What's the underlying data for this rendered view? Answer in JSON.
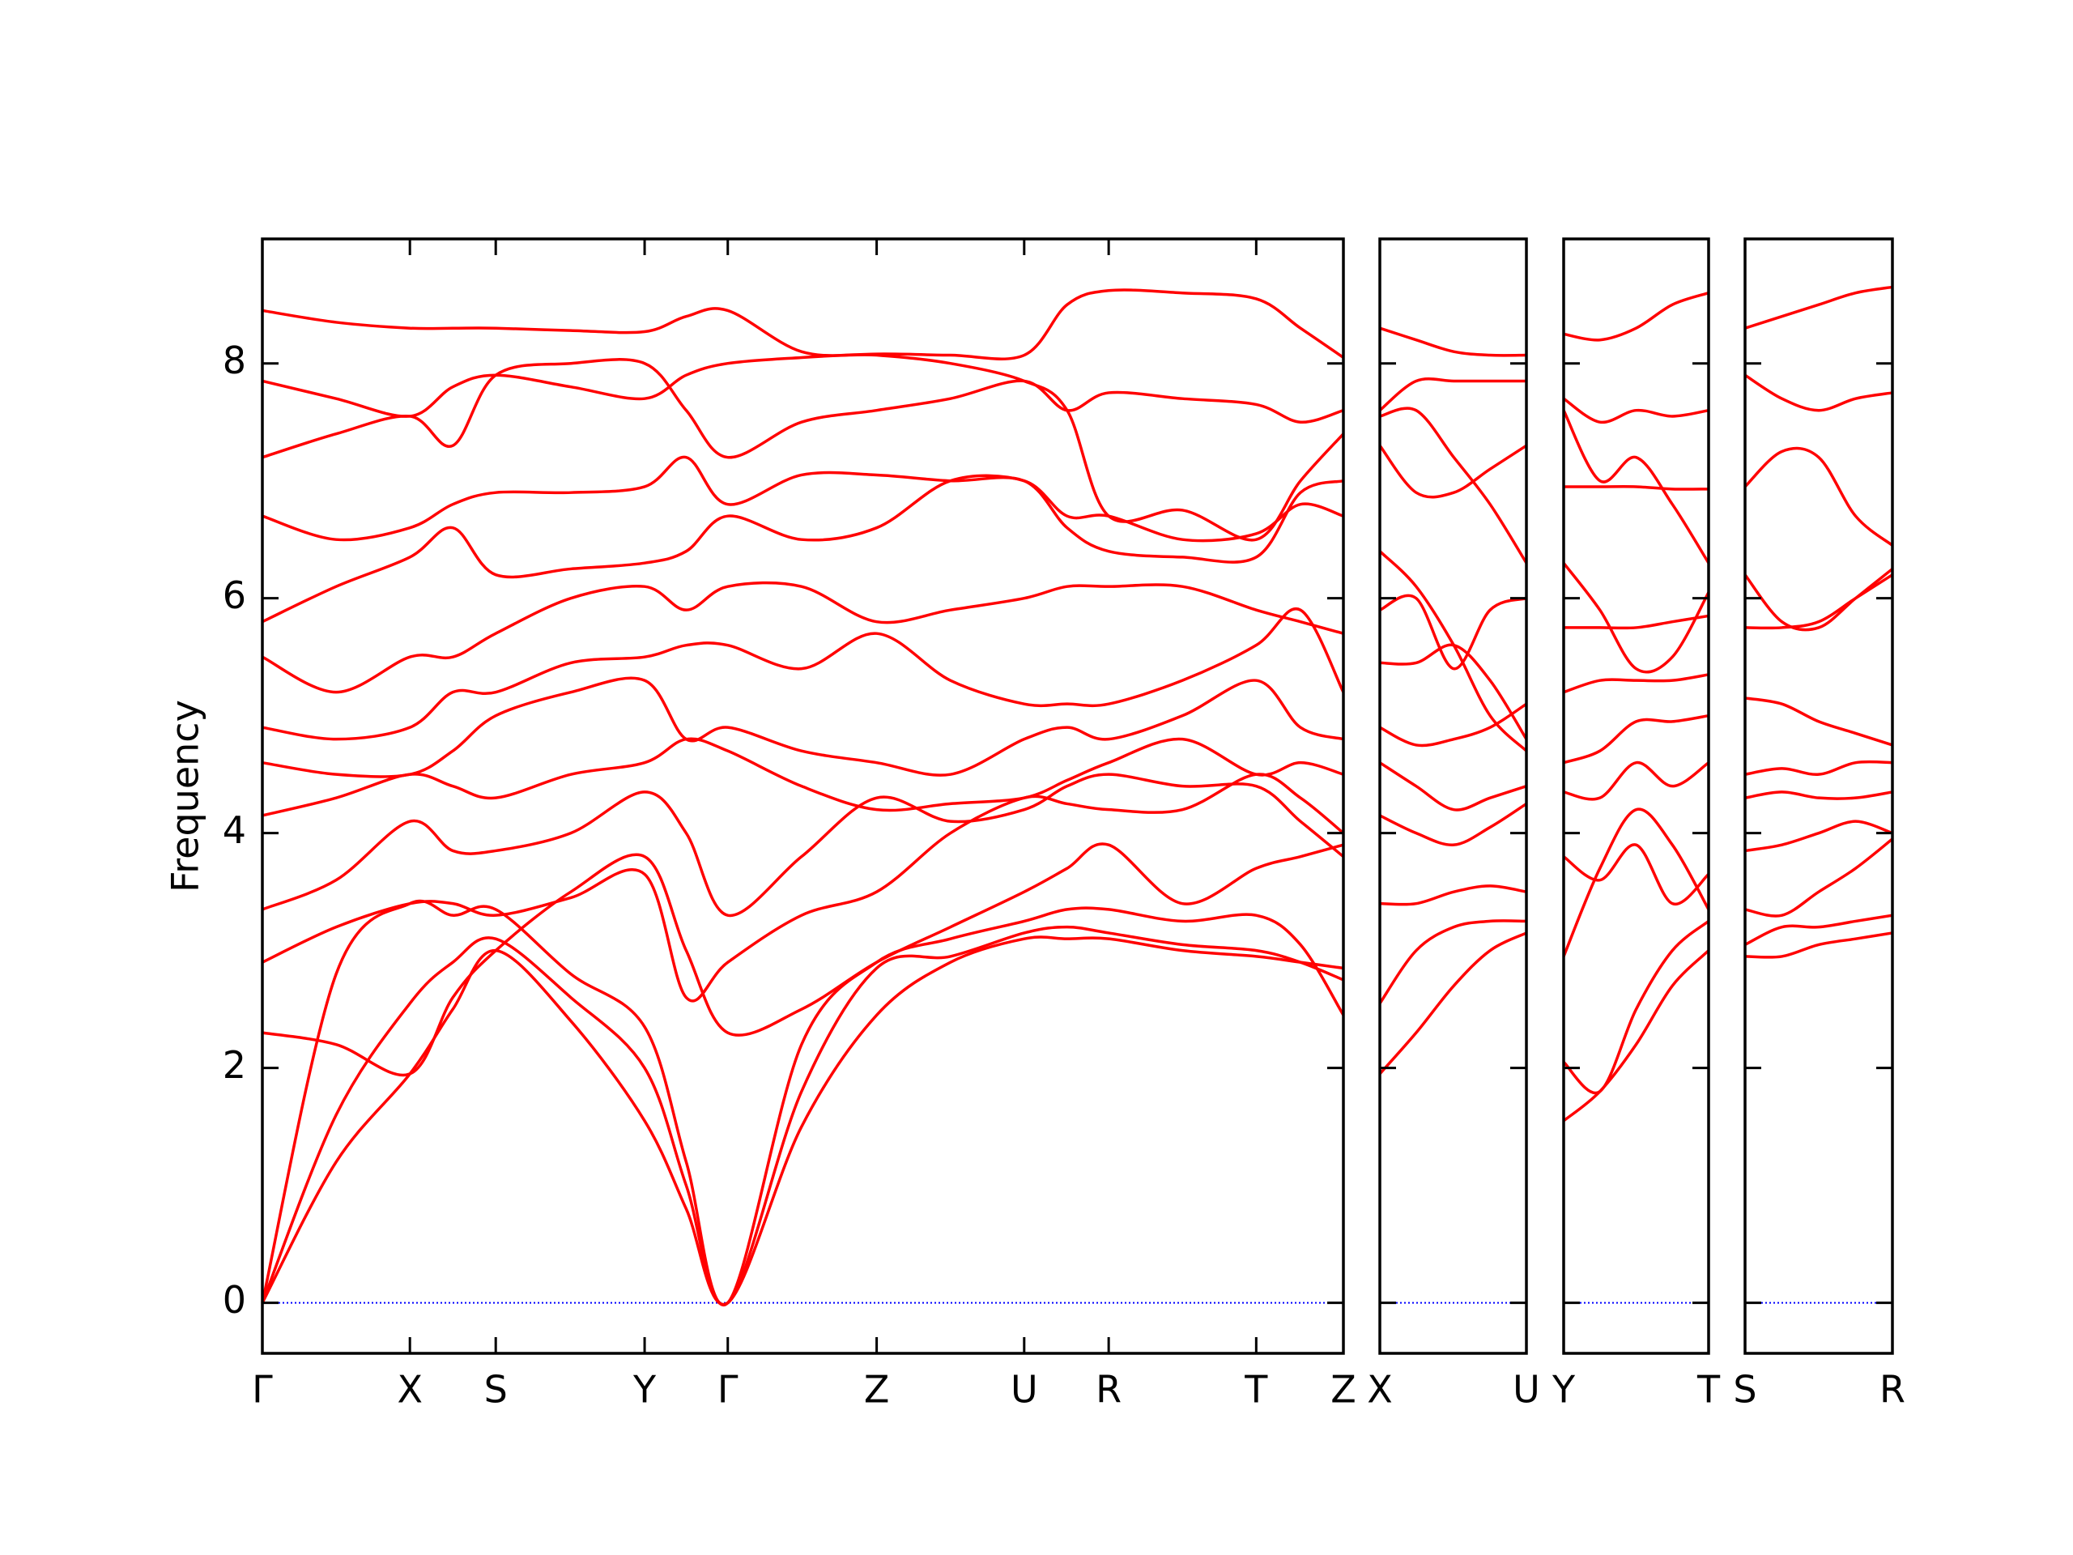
{
  "chart_data": [
    {
      "type": "line",
      "ylabel": "Frequency",
      "color": "#ff0000",
      "hline": 0,
      "hline_color": "#0000ff",
      "ylim": [
        -0.43,
        9.06
      ],
      "yticks": [
        0,
        2,
        4,
        6,
        8
      ],
      "show_ytick_labels": true,
      "xlim": [
        0,
        8.06
      ],
      "xticks": [
        {
          "value": 0,
          "label": "Γ"
        },
        {
          "value": 1.1,
          "label": "X"
        },
        {
          "value": 1.74,
          "label": "S"
        },
        {
          "value": 2.85,
          "label": "Y"
        },
        {
          "value": 3.47,
          "label": "Γ"
        },
        {
          "value": 4.58,
          "label": "Z"
        },
        {
          "value": 5.68,
          "label": "U"
        },
        {
          "value": 6.31,
          "label": "R"
        },
        {
          "value": 7.41,
          "label": "T"
        },
        {
          "value": 8.06,
          "label": "Z"
        }
      ],
      "x": [
        0,
        0.55,
        1.1,
        1.42,
        1.74,
        2.3,
        2.85,
        3.16,
        3.47,
        4.02,
        4.58,
        5.13,
        5.68,
        6.0,
        6.31,
        6.86,
        7.41,
        7.74,
        8.06
      ],
      "series": [
        {
          "values": [
            0,
            1.2,
            1.95,
            2.5,
            3.0,
            2.4,
            1.55,
            0.8,
            0,
            1.5,
            2.45,
            2.9,
            3.1,
            3.1,
            3.1,
            3.0,
            2.95,
            2.9,
            2.85
          ]
        },
        {
          "values": [
            0,
            1.6,
            2.55,
            2.9,
            3.1,
            2.6,
            2.0,
            1.0,
            0,
            1.8,
            2.85,
            2.95,
            3.15,
            3.2,
            3.15,
            3.05,
            3.0,
            2.9,
            2.75
          ]
        },
        {
          "values": [
            0,
            2.8,
            3.4,
            3.3,
            3.35,
            2.8,
            2.35,
            1.2,
            0,
            2.2,
            2.9,
            3.1,
            3.25,
            3.35,
            3.35,
            3.25,
            3.3,
            3.05,
            2.45
          ]
        },
        {
          "values": [
            2.3,
            2.2,
            1.95,
            2.6,
            3.0,
            3.5,
            3.8,
            3.0,
            2.3,
            2.5,
            2.9,
            3.2,
            3.5,
            3.7,
            3.9,
            3.4,
            3.7,
            3.8,
            3.9
          ]
        },
        {
          "values": [
            2.9,
            3.2,
            3.4,
            3.4,
            3.3,
            3.45,
            3.65,
            2.6,
            2.9,
            3.3,
            3.5,
            4.0,
            4.3,
            4.25,
            4.2,
            4.2,
            4.5,
            4.3,
            4.0
          ]
        },
        {
          "values": [
            3.35,
            3.6,
            4.1,
            3.85,
            3.85,
            4.0,
            4.35,
            4.0,
            3.3,
            3.8,
            4.3,
            4.1,
            4.2,
            4.4,
            4.5,
            4.4,
            4.4,
            4.1,
            3.8
          ]
        },
        {
          "values": [
            4.15,
            4.3,
            4.5,
            4.4,
            4.3,
            4.5,
            4.6,
            4.8,
            4.7,
            4.4,
            4.2,
            4.25,
            4.3,
            4.45,
            4.6,
            4.8,
            4.5,
            4.6,
            4.5
          ]
        },
        {
          "values": [
            4.6,
            4.5,
            4.5,
            4.7,
            5.0,
            5.2,
            5.3,
            4.8,
            4.9,
            4.7,
            4.6,
            4.5,
            4.8,
            4.9,
            4.8,
            5.0,
            5.3,
            4.9,
            4.8
          ]
        },
        {
          "values": [
            4.9,
            4.8,
            4.9,
            5.2,
            5.2,
            5.45,
            5.5,
            5.6,
            5.6,
            5.4,
            5.7,
            5.3,
            5.1,
            5.1,
            5.1,
            5.3,
            5.6,
            5.9,
            5.2
          ]
        },
        {
          "values": [
            5.5,
            5.2,
            5.5,
            5.5,
            5.7,
            6.0,
            6.1,
            5.9,
            6.1,
            6.1,
            5.8,
            5.9,
            6.0,
            6.1,
            6.1,
            6.1,
            5.9,
            5.8,
            5.7
          ]
        },
        {
          "values": [
            5.8,
            6.1,
            6.35,
            6.6,
            6.2,
            6.25,
            6.3,
            6.4,
            6.7,
            6.5,
            6.6,
            7.0,
            7.0,
            6.7,
            6.7,
            6.5,
            6.55,
            6.8,
            6.7
          ]
        },
        {
          "values": [
            6.7,
            6.5,
            6.6,
            6.8,
            6.9,
            6.9,
            6.95,
            7.2,
            6.8,
            7.05,
            7.05,
            7.0,
            7.0,
            6.6,
            6.4,
            6.35,
            6.35,
            6.9,
            7.0
          ]
        },
        {
          "values": [
            7.2,
            7.4,
            7.55,
            7.3,
            7.9,
            8.0,
            8.0,
            7.6,
            7.2,
            7.5,
            7.6,
            7.7,
            7.85,
            7.6,
            7.75,
            7.7,
            7.65,
            7.5,
            7.6
          ]
        },
        {
          "values": [
            7.85,
            7.7,
            7.55,
            7.8,
            7.9,
            7.8,
            7.7,
            7.9,
            8.0,
            8.05,
            8.08,
            8.07,
            8.07,
            8.5,
            8.62,
            8.6,
            8.55,
            8.3,
            8.05
          ]
        },
        {
          "values": [
            8.45,
            8.35,
            8.3,
            8.3,
            8.3,
            8.28,
            8.27,
            8.4,
            8.45,
            8.1,
            8.07,
            8.0,
            7.85,
            7.6,
            6.7,
            6.75,
            6.5,
            7.0,
            7.4
          ]
        }
      ]
    },
    {
      "type": "line",
      "color": "#ff0000",
      "hline": 0,
      "hline_color": "#0000ff",
      "ylim": [
        -0.43,
        9.06
      ],
      "yticks": [
        0,
        2,
        4,
        6,
        8
      ],
      "show_ytick_labels": false,
      "xlim": [
        0,
        1.09
      ],
      "xticks": [
        {
          "value": 0,
          "label": "X"
        },
        {
          "value": 1.09,
          "label": "U"
        }
      ],
      "x": [
        0,
        0.27,
        0.55,
        0.82,
        1.09
      ],
      "series": [
        {
          "values": [
            1.95,
            2.3,
            2.7,
            3.0,
            3.15
          ]
        },
        {
          "values": [
            2.55,
            3.0,
            3.2,
            3.25,
            3.25
          ]
        },
        {
          "values": [
            3.4,
            3.4,
            3.5,
            3.55,
            3.5
          ]
        },
        {
          "values": [
            4.15,
            4.0,
            3.9,
            4.05,
            4.25
          ]
        },
        {
          "values": [
            4.6,
            4.4,
            4.2,
            4.3,
            4.4
          ]
        },
        {
          "values": [
            4.9,
            4.75,
            4.8,
            4.9,
            5.1
          ]
        },
        {
          "values": [
            5.45,
            5.45,
            5.6,
            5.3,
            4.8
          ]
        },
        {
          "values": [
            5.9,
            6.0,
            5.4,
            5.9,
            6.0
          ]
        },
        {
          "values": [
            6.4,
            6.1,
            5.6,
            5.0,
            4.7
          ]
        },
        {
          "values": [
            7.3,
            6.9,
            6.9,
            7.1,
            7.3
          ]
        },
        {
          "values": [
            7.55,
            7.6,
            7.2,
            6.8,
            6.3
          ]
        },
        {
          "values": [
            7.6,
            7.85,
            7.85,
            7.85,
            7.85
          ]
        },
        {
          "values": [
            8.3,
            8.2,
            8.1,
            8.07,
            8.07
          ]
        }
      ]
    },
    {
      "type": "line",
      "color": "#ff0000",
      "hline": 0,
      "hline_color": "#0000ff",
      "ylim": [
        -0.43,
        9.06
      ],
      "yticks": [
        0,
        2,
        4,
        6,
        8
      ],
      "show_ytick_labels": false,
      "xlim": [
        0,
        1.08
      ],
      "xticks": [
        {
          "value": 0,
          "label": "Y"
        },
        {
          "value": 1.08,
          "label": "T"
        }
      ],
      "x": [
        0,
        0.27,
        0.54,
        0.81,
        1.08
      ],
      "series": [
        {
          "values": [
            1.55,
            1.8,
            2.2,
            2.7,
            3.0
          ]
        },
        {
          "values": [
            2.05,
            1.8,
            2.5,
            3.0,
            3.25
          ]
        },
        {
          "values": [
            2.95,
            3.7,
            4.2,
            3.9,
            3.35
          ]
        },
        {
          "values": [
            3.8,
            3.6,
            3.9,
            3.4,
            3.65
          ]
        },
        {
          "values": [
            4.35,
            4.3,
            4.6,
            4.4,
            4.6
          ]
        },
        {
          "values": [
            4.6,
            4.7,
            4.95,
            4.95,
            5.0
          ]
        },
        {
          "values": [
            5.2,
            5.3,
            5.3,
            5.3,
            5.35
          ]
        },
        {
          "values": [
            5.75,
            5.75,
            5.75,
            5.8,
            5.85
          ]
        },
        {
          "values": [
            6.3,
            5.9,
            5.4,
            5.5,
            6.05
          ]
        },
        {
          "values": [
            6.95,
            6.95,
            6.95,
            6.93,
            6.93
          ]
        },
        {
          "values": [
            7.6,
            7.0,
            7.2,
            6.8,
            6.3
          ]
        },
        {
          "values": [
            7.7,
            7.5,
            7.6,
            7.55,
            7.6
          ]
        },
        {
          "values": [
            8.25,
            8.2,
            8.3,
            8.5,
            8.6
          ]
        }
      ]
    },
    {
      "type": "line",
      "color": "#ff0000",
      "hline": 0,
      "hline_color": "#0000ff",
      "ylim": [
        -0.43,
        9.06
      ],
      "yticks": [
        0,
        2,
        4,
        6,
        8
      ],
      "show_ytick_labels": false,
      "xlim": [
        0,
        1.1
      ],
      "xticks": [
        {
          "value": 0,
          "label": "S"
        },
        {
          "value": 1.1,
          "label": "R"
        }
      ],
      "x": [
        0,
        0.275,
        0.55,
        0.825,
        1.1
      ],
      "series": [
        {
          "values": [
            2.95,
            2.95,
            3.05,
            3.1,
            3.15
          ]
        },
        {
          "values": [
            3.05,
            3.2,
            3.2,
            3.25,
            3.3
          ]
        },
        {
          "values": [
            3.35,
            3.3,
            3.5,
            3.7,
            3.95
          ]
        },
        {
          "values": [
            3.85,
            3.9,
            4.0,
            4.1,
            4.0
          ]
        },
        {
          "values": [
            4.3,
            4.35,
            4.3,
            4.3,
            4.35
          ]
        },
        {
          "values": [
            4.5,
            4.55,
            4.5,
            4.6,
            4.6
          ]
        },
        {
          "values": [
            5.15,
            5.1,
            4.95,
            4.85,
            4.75
          ]
        },
        {
          "values": [
            5.75,
            5.75,
            5.8,
            6.0,
            6.2
          ]
        },
        {
          "values": [
            6.2,
            5.8,
            5.75,
            6.0,
            6.25
          ]
        },
        {
          "values": [
            6.95,
            7.25,
            7.2,
            6.7,
            6.45
          ]
        },
        {
          "values": [
            7.9,
            7.7,
            7.6,
            7.7,
            7.75
          ]
        },
        {
          "values": [
            8.3,
            8.4,
            8.5,
            8.6,
            8.65
          ]
        }
      ]
    }
  ]
}
